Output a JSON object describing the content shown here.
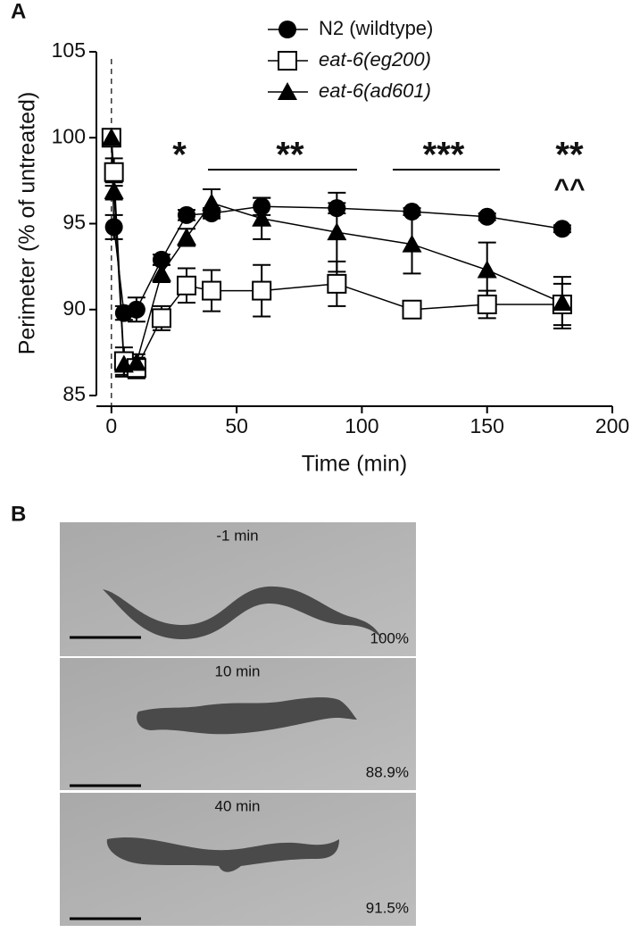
{
  "chart_data": {
    "type": "line",
    "x_label": "Time (min)",
    "y_label": "Perimeter (% of untreated)",
    "x": [
      0,
      1,
      5,
      10,
      20,
      30,
      40,
      60,
      90,
      120,
      150,
      180
    ],
    "series": [
      {
        "name": "N2 (wildtype)",
        "color": "#000000",
        "marker": "circle",
        "values": [
          100,
          94.8,
          89.8,
          90.0,
          92.9,
          95.5,
          95.6,
          96.0,
          95.9,
          95.7,
          95.4,
          94.7
        ],
        "errors": [
          0.2,
          0.7,
          0.4,
          0.7,
          0.3,
          0.3,
          0.3,
          0.5,
          0.3,
          0.2,
          0.2,
          0.2
        ]
      },
      {
        "name": "eat-6(eg200)",
        "color": "#000000",
        "marker": "open-square",
        "values": [
          100,
          98.0,
          87.0,
          86.6,
          89.5,
          91.4,
          91.1,
          91.1,
          91.5,
          90.0,
          90.3,
          90.3
        ],
        "errors": [
          0.2,
          0.8,
          0.8,
          0.6,
          0.7,
          1.0,
          1.2,
          1.5,
          1.3,
          0.3,
          0.8,
          1.2
        ]
      },
      {
        "name": "eat-6(ad601)",
        "color": "#000000",
        "marker": "triangle",
        "values": [
          100,
          96.9,
          86.8,
          86.9,
          92.1,
          94.2,
          96.2,
          95.3,
          94.5,
          93.8,
          92.3,
          90.4
        ],
        "errors": [
          0.2,
          0.5,
          0.7,
          0.5,
          0.5,
          0.5,
          0.8,
          1.2,
          2.3,
          1.7,
          1.6,
          1.5
        ]
      }
    ],
    "xlim": [
      -6,
      200
    ],
    "xticks": [
      0,
      50,
      100,
      150,
      200
    ],
    "ylim": [
      85,
      105
    ],
    "yticks": [
      85,
      90,
      95,
      100,
      105
    ],
    "annotations": [
      "*",
      "**",
      "***",
      "**",
      "^^"
    ]
  },
  "panel_labels": [
    "A",
    "B"
  ],
  "micrographs": [
    {
      "time": "-1 min",
      "percent": "100%"
    },
    {
      "time": "10 min",
      "percent": "88.9%"
    },
    {
      "time": "40 min",
      "percent": "91.5%"
    }
  ]
}
